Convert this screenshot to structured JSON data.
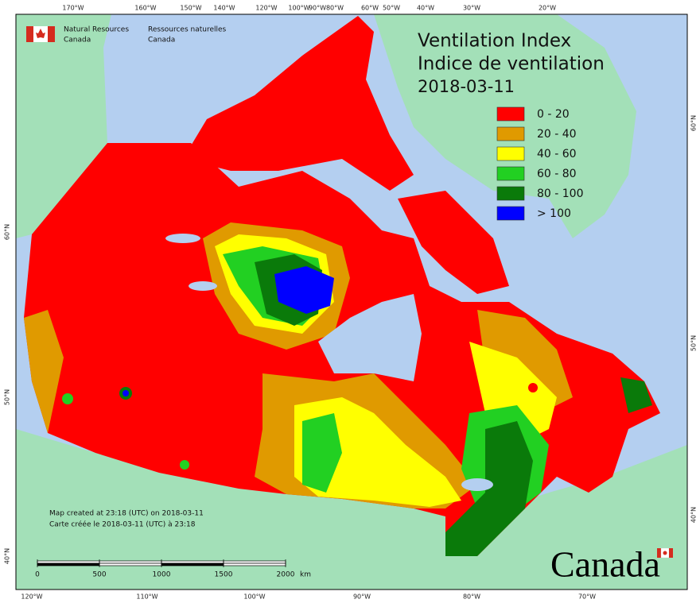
{
  "agency": {
    "en_line1": "Natural Resources",
    "en_line2": "Canada",
    "fr_line1": "Ressources naturelles",
    "fr_line2": "Canada"
  },
  "title": {
    "en": "Ventilation Index",
    "fr": "Indice de ventilation",
    "date": "2018-03-11"
  },
  "legend": [
    {
      "label": "0 - 20",
      "color": "#ff0000"
    },
    {
      "label": "20 - 40",
      "color": "#e09a00"
    },
    {
      "label": "40 - 60",
      "color": "#ffff00"
    },
    {
      "label": "60 - 80",
      "color": "#22d022"
    },
    {
      "label": "80 - 100",
      "color": "#0a7a0a"
    },
    {
      "label": "> 100",
      "color": "#0000ff"
    }
  ],
  "graticule": {
    "top": [
      "170°W",
      "160°W",
      "150°W",
      "140°W",
      "120°W",
      "100°W",
      "90°W",
      "80°W",
      "60°W",
      "50°W",
      "40°W",
      "30°W",
      "20°W"
    ],
    "bottom": [
      "120°W",
      "110°W",
      "100°W",
      "90°W",
      "80°W",
      "70°W"
    ],
    "left": [
      "60°N",
      "50°N",
      "40°N"
    ],
    "right": [
      "60°N",
      "50°N",
      "40°N"
    ]
  },
  "credits": {
    "en": "Map created at 23:18 (UTC) on 2018-03-11",
    "fr": "Carte créée le 2018-03-11 (UTC) à 23:18"
  },
  "scale_bar": {
    "ticks": [
      0,
      500,
      1000,
      1500,
      2000
    ],
    "unit": "km"
  },
  "wordmark": "Canada"
}
